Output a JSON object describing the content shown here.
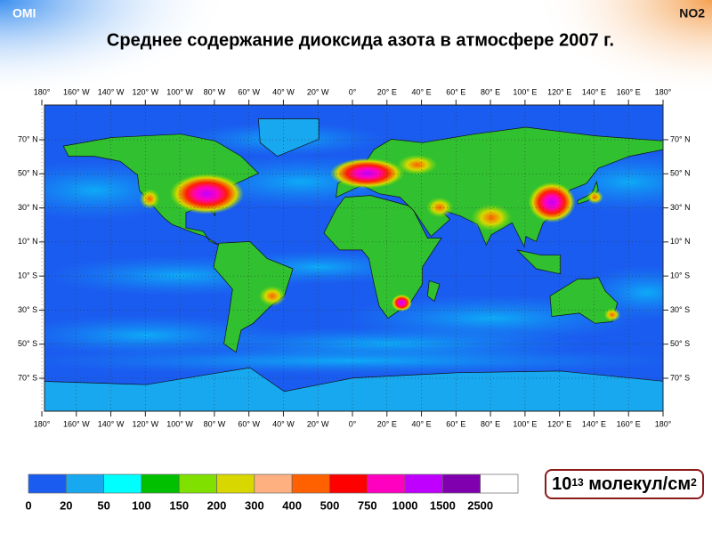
{
  "header": {
    "left": "OMI",
    "right": "NO2",
    "title": "Среднее содержание диоксида азота в атмосфере 2007 г."
  },
  "map": {
    "longitude_labels": [
      "180°",
      "160° W",
      "140° W",
      "120° W",
      "100° W",
      "80° W",
      "60° W",
      "40° W",
      "20° W",
      "0°",
      "20° E",
      "40° E",
      "60° E",
      "80° E",
      "100° E",
      "120° E",
      "140° E",
      "160° E",
      "180°"
    ],
    "latitude_labels": [
      "70° N",
      "50° N",
      "30° N",
      "10° N",
      "10° S",
      "30° S",
      "50° S",
      "70° S"
    ]
  },
  "legend": {
    "colors": [
      "#1a5cf0",
      "#18a8f0",
      "#00ffff",
      "#00c000",
      "#80e000",
      "#d8d800",
      "#ffb080",
      "#ff6000",
      "#ff0000",
      "#ff00c0",
      "#c000ff",
      "#8000b0",
      "#ffffff"
    ],
    "labels": [
      "0",
      "20",
      "50",
      "100",
      "150",
      "200",
      "300",
      "400",
      "500",
      "750",
      "1000",
      "1500",
      "2500"
    ]
  },
  "unit": {
    "base": "10",
    "exponent": "13",
    "text": "молекул/см",
    "text_exponent": "2"
  }
}
